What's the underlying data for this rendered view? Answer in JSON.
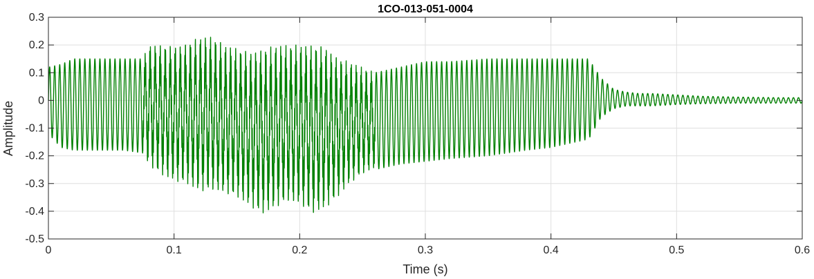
{
  "chart_data": {
    "type": "line",
    "title": "1CO-013-051-0004",
    "xlabel": "Time (s)",
    "ylabel": "Amplitude",
    "xlim": [
      0,
      0.6
    ],
    "ylim": [
      -0.5,
      0.3
    ],
    "xticks": [
      0,
      0.1,
      0.2,
      0.3,
      0.4,
      0.5,
      0.6
    ],
    "xtick_labels": [
      "0",
      "0.1",
      "0.2",
      "0.3",
      "0.4",
      "0.5",
      "0.6"
    ],
    "yticks": [
      -0.5,
      -0.4,
      -0.3,
      -0.2,
      -0.1,
      0,
      0.1,
      0.2,
      0.3
    ],
    "ytick_labels": [
      "-0.5",
      "-0.4",
      "-0.3",
      "-0.2",
      "-0.1",
      "0",
      "0.1",
      "0.2",
      "0.3"
    ],
    "grid": true,
    "color": "#008000",
    "series": [
      {
        "envelope_time": [
          0,
          0.01,
          0.02,
          0.04,
          0.06,
          0.075,
          0.08,
          0.09,
          0.1,
          0.11,
          0.12,
          0.13,
          0.14,
          0.15,
          0.16,
          0.17,
          0.18,
          0.19,
          0.2,
          0.21,
          0.22,
          0.23,
          0.24,
          0.25,
          0.26,
          0.28,
          0.3,
          0.32,
          0.35,
          0.38,
          0.4,
          0.42,
          0.43,
          0.44,
          0.45,
          0.46,
          0.47,
          0.48,
          0.5,
          0.52,
          0.55,
          0.58,
          0.6
        ],
        "envelope_upper": [
          0.12,
          0.13,
          0.15,
          0.15,
          0.15,
          0.15,
          0.2,
          0.2,
          0.2,
          0.21,
          0.23,
          0.23,
          0.2,
          0.19,
          0.18,
          0.19,
          0.2,
          0.2,
          0.2,
          0.2,
          0.2,
          0.16,
          0.14,
          0.12,
          0.1,
          0.12,
          0.14,
          0.14,
          0.15,
          0.15,
          0.15,
          0.15,
          0.15,
          0.08,
          0.04,
          0.03,
          0.025,
          0.025,
          0.02,
          0.015,
          0.012,
          0.01,
          0.01
        ],
        "envelope_lower": [
          -0.12,
          -0.17,
          -0.18,
          -0.18,
          -0.18,
          -0.19,
          -0.24,
          -0.27,
          -0.29,
          -0.3,
          -0.33,
          -0.33,
          -0.34,
          -0.35,
          -0.38,
          -0.41,
          -0.39,
          -0.37,
          -0.38,
          -0.41,
          -0.39,
          -0.35,
          -0.3,
          -0.27,
          -0.25,
          -0.23,
          -0.22,
          -0.21,
          -0.2,
          -0.18,
          -0.17,
          -0.15,
          -0.14,
          -0.06,
          -0.03,
          -0.02,
          -0.02,
          -0.02,
          -0.015,
          -0.012,
          -0.01,
          -0.01,
          -0.01
        ],
        "pitch_period_s": 0.004
      }
    ]
  }
}
